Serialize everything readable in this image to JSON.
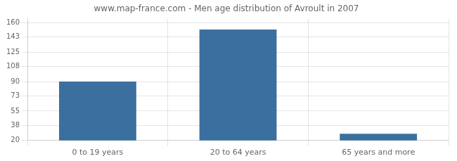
{
  "chart_data": {
    "type": "bar",
    "title": "www.map-france.com - Men age distribution of Avroult in 2007",
    "categories": [
      "0 to 19 years",
      "20 to 64 years",
      "65 years and more"
    ],
    "values": [
      90,
      152,
      28
    ],
    "color": "#3a6f9f",
    "ylim": [
      20,
      165
    ],
    "yticks": [
      20,
      38,
      55,
      73,
      90,
      108,
      125,
      143,
      160
    ],
    "grid": true
  }
}
